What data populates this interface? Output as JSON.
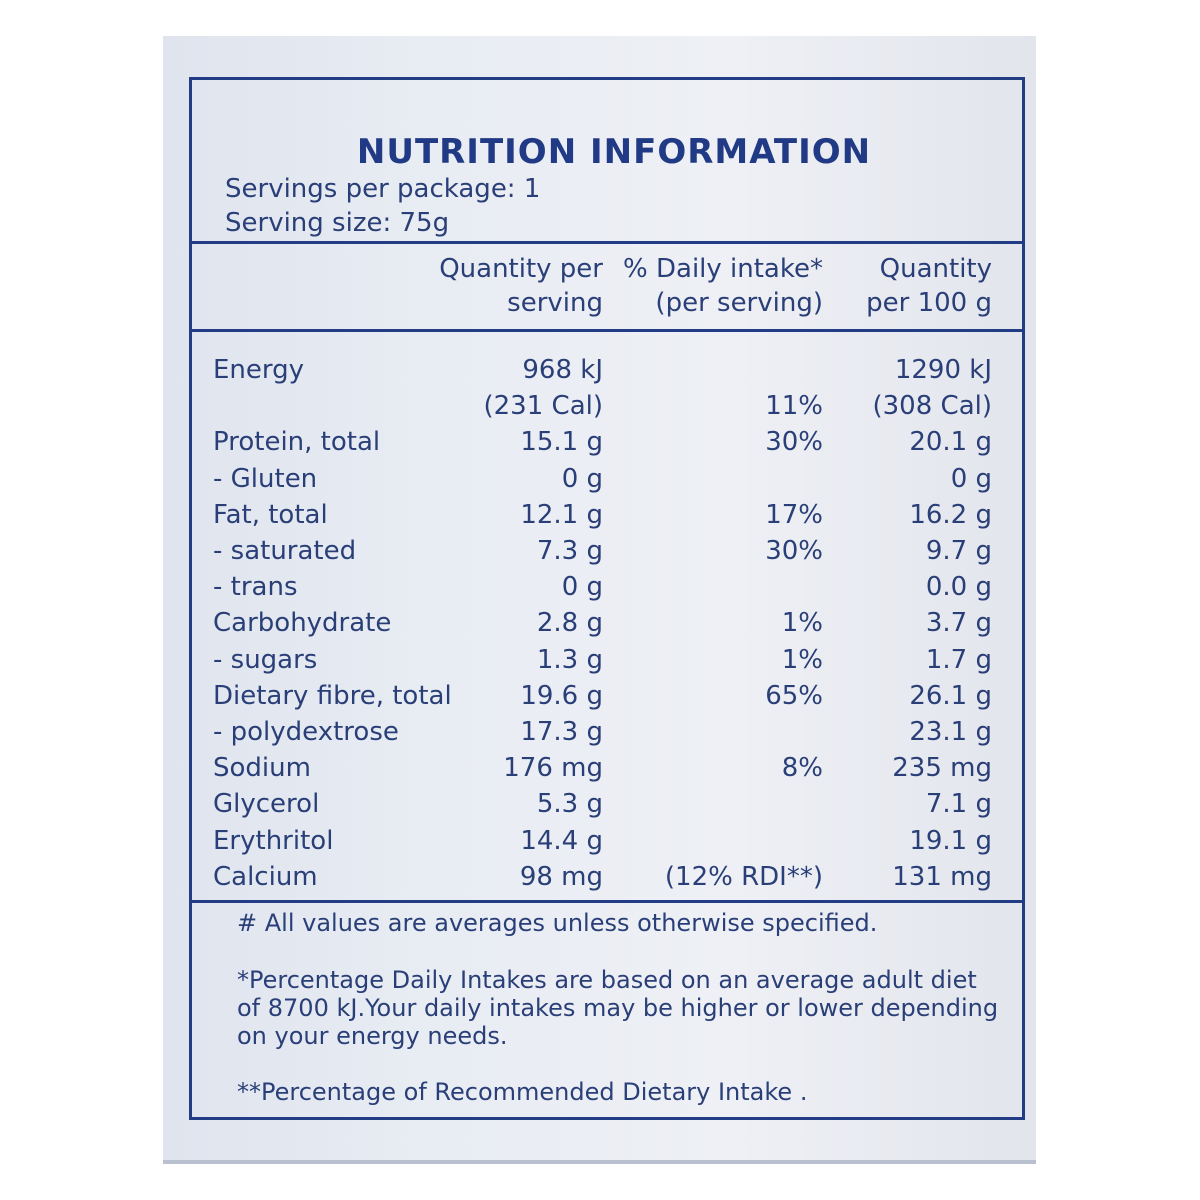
{
  "title": "NUTRITION INFORMATION",
  "servings_per_package": "Servings per package: 1",
  "serving_size": "Serving size: 75g",
  "columns": {
    "per_serving": [
      "Quantity per",
      "serving"
    ],
    "daily_intake": [
      "% Daily intake*",
      "(per serving)"
    ],
    "per_100g": [
      "Quantity",
      "per 100 g"
    ]
  },
  "rows": [
    {
      "name": "Energy",
      "serving": "968 kJ",
      "daily": "",
      "per100": "1290 kJ"
    },
    {
      "name": "",
      "serving": "(231 Cal)",
      "daily": "11%",
      "per100": "(308 Cal)"
    },
    {
      "name": "Protein, total",
      "serving": "15.1 g",
      "daily": "30%",
      "per100": "20.1 g"
    },
    {
      "name": " - Gluten",
      "serving": "0 g",
      "daily": "",
      "per100": "0 g"
    },
    {
      "name": "Fat, total",
      "serving": "12.1 g",
      "daily": "17%",
      "per100": "16.2 g"
    },
    {
      "name": " - saturated",
      "serving": "7.3 g",
      "daily": "30%",
      "per100": "9.7 g"
    },
    {
      "name": " - trans",
      "serving": "0 g",
      "daily": "",
      "per100": "0.0 g"
    },
    {
      "name": "Carbohydrate",
      "serving": "2.8 g",
      "daily": "1%",
      "per100": "3.7 g"
    },
    {
      "name": " - sugars",
      "serving": "1.3 g",
      "daily": "1%",
      "per100": "1.7 g"
    },
    {
      "name": "Dietary fibre, total",
      "serving": "19.6 g",
      "daily": "65%",
      "per100": "26.1 g"
    },
    {
      "name": " - polydextrose",
      "serving": "17.3 g",
      "daily": "",
      "per100": "23.1 g"
    },
    {
      "name": "Sodium",
      "serving": "176 mg",
      "daily": "8%",
      "per100": "235 mg"
    },
    {
      "name": "Glycerol",
      "serving": "5.3 g",
      "daily": "",
      "per100": "7.1 g"
    },
    {
      "name": "Erythritol",
      "serving": "14.4 g",
      "daily": "",
      "per100": "19.1 g"
    },
    {
      "name": "Calcium",
      "serving": "98 mg",
      "daily": "(12% RDI**)",
      "per100": "131 mg"
    }
  ],
  "notes": {
    "averages": "# All values are averages unless otherwise specified.",
    "daily_intake": "*Percentage Daily Intakes are based on an average adult diet of 8700 kJ.Your daily intakes may be higher or lower depending on your energy needs.",
    "rdi": "**Percentage of Recommended Dietary Intake ."
  },
  "colors": {
    "ink": "#233c86",
    "text": "#2a3f78",
    "panel": "#e8ecf3"
  }
}
